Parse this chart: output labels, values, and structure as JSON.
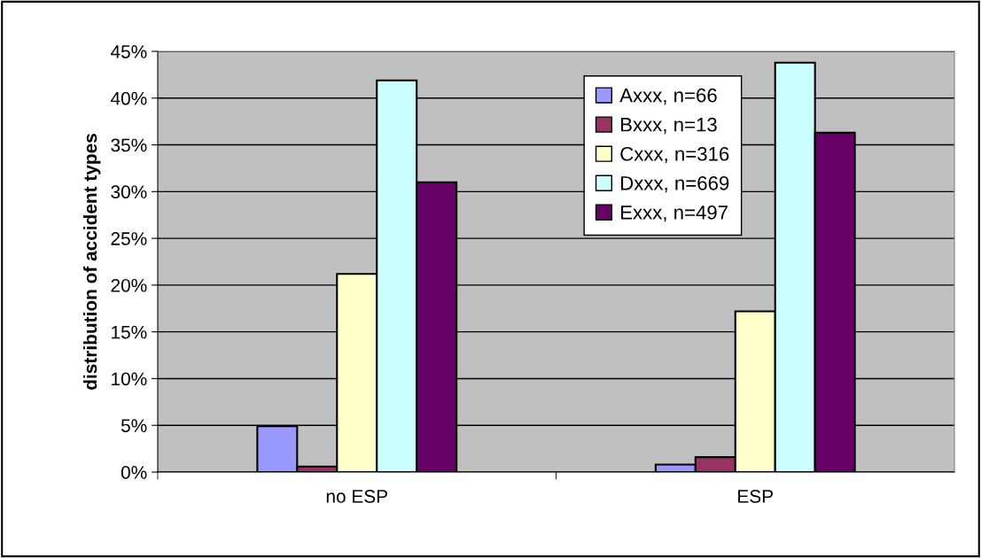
{
  "chart_data": {
    "type": "bar",
    "ylabel": "distribution of accident types",
    "categories": [
      "no ESP",
      "ESP"
    ],
    "series": [
      {
        "name": "Axxx, n=66",
        "color": "#9999ff",
        "values": [
          4.9,
          0.8
        ]
      },
      {
        "name": "Bxxx, n=13",
        "color": "#993366",
        "values": [
          0.6,
          1.6
        ]
      },
      {
        "name": "Cxxx, n=316",
        "color": "#ffffcc",
        "values": [
          21.2,
          17.2
        ]
      },
      {
        "name": "Dxxx, n=669",
        "color": "#ccffff",
        "values": [
          41.9,
          43.8
        ]
      },
      {
        "name": "Exxx, n=497",
        "color": "#660066",
        "values": [
          31.0,
          36.3
        ]
      }
    ],
    "ylim": [
      0,
      45
    ],
    "yticks": [
      {
        "value": 0,
        "label": "0%"
      },
      {
        "value": 5,
        "label": "5%"
      },
      {
        "value": 10,
        "label": "10%"
      },
      {
        "value": 15,
        "label": "15%"
      },
      {
        "value": 20,
        "label": "20%"
      },
      {
        "value": 25,
        "label": "25%"
      },
      {
        "value": 30,
        "label": "30%"
      },
      {
        "value": 35,
        "label": "35%"
      },
      {
        "value": 40,
        "label": "40%"
      },
      {
        "value": 45,
        "label": "45%"
      }
    ],
    "grid": "y",
    "legend": "top right"
  }
}
